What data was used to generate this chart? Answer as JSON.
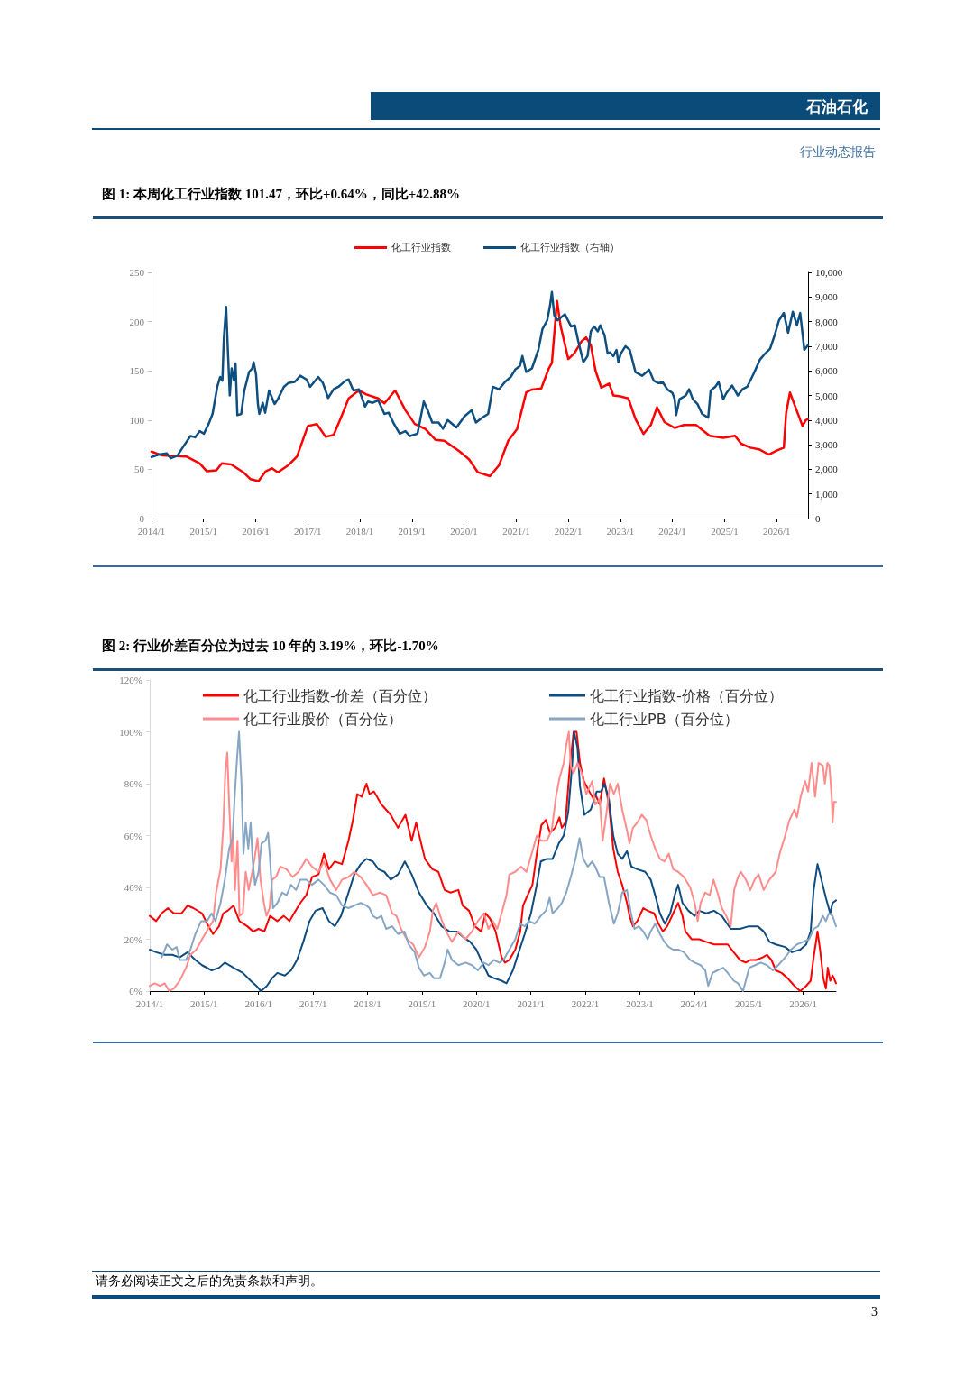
{
  "chart_data": [
    {
      "type": "line",
      "title": "图 1: 本周化工行业指数 101.47，环比+0.64%，同比+42.88%",
      "annotations": [
        "石油石化",
        "行业动态报告"
      ],
      "xlim": [
        "2014-01-01",
        "2026-08-09"
      ],
      "xticks": [
        {
          "value": "2014-01",
          "label": "2014/1"
        },
        {
          "value": "2015-01",
          "label": "2015/1"
        },
        {
          "value": "2016-01",
          "label": "2016/1"
        },
        {
          "value": "2017-01",
          "label": "2017/1"
        },
        {
          "value": "2018-01",
          "label": "2018/1"
        },
        {
          "value": "2019-01",
          "label": "2019/1"
        },
        {
          "value": "2020-01",
          "label": "2020/1"
        },
        {
          "value": "2021-01",
          "label": "2021/1"
        },
        {
          "value": "2022-01",
          "label": "2022/1"
        },
        {
          "value": "2023-01",
          "label": "2023/1"
        },
        {
          "value": "2024-01",
          "label": "2024/1"
        },
        {
          "value": "2025-01",
          "label": "2025/1"
        },
        {
          "value": "2026-01",
          "label": "2026/1"
        }
      ],
      "ylim": [
        0,
        250
      ],
      "yticks": [
        0,
        50,
        100,
        150,
        200,
        250
      ],
      "y2lim": [
        0,
        10000
      ],
      "y2ticks": [
        0,
        {
          "value": 1000,
          "label": "1,000"
        },
        {
          "value": 2000,
          "label": "2,000"
        },
        {
          "value": 3000,
          "label": "3,000"
        },
        {
          "value": 4000,
          "label": "4,000"
        },
        {
          "value": 5000,
          "label": "5,000"
        },
        {
          "value": 6000,
          "label": "6,000"
        },
        {
          "value": 7000,
          "label": "7,000"
        },
        {
          "value": 8000,
          "label": "8,000"
        },
        {
          "value": 9000,
          "label": "9,000"
        },
        {
          "value": 10000,
          "label": "10,000"
        }
      ],
      "grid": false,
      "legend": "top",
      "marker": "none",
      "line_style": "solid",
      "series": [
        {
          "name": "化工行业指数",
          "color": "#ff0000",
          "x": [
            "2014-01-01",
            "2014-03-18",
            "2014-09-02",
            "2014-12-05",
            "2015-01-24",
            "2015-04-01",
            "2015-05-09",
            "2015-07-14",
            "2015-10-07",
            "2015-11-26",
            "2016-01-21",
            "2016-03-12",
            "2016-04-24",
            "2016-06-05",
            "2016-08-16",
            "2016-10-17",
            "2017-01-01",
            "2017-03-05",
            "2017-05-06",
            "2017-07-01",
            "2017-08-20",
            "2017-10-14",
            "2017-12-15",
            "2018-01-08",
            "2018-02-15",
            "2018-05-09",
            "2018-06-22",
            "2018-09-05",
            "2018-11-16",
            "2019-01-21",
            "2019-04-04",
            "2019-06-15",
            "2019-08-16",
            "2019-12-02",
            "2020-02-06",
            "2020-04-07",
            "2020-07-01",
            "2020-09-02",
            "2020-11-06",
            "2021-01-07",
            "2021-03-12",
            "2021-04-21",
            "2021-06-25",
            "2021-08-16",
            "2021-09-08",
            "2021-10-14",
            "2021-11-09",
            "2022-01-01",
            "2022-02-13",
            "2022-04-04",
            "2022-05-06",
            "2022-06-08",
            "2022-07-11",
            "2022-08-20",
            "2022-10-14",
            "2022-11-13",
            "2023-01-04",
            "2023-02-26",
            "2023-04-17",
            "2023-06-12",
            "2023-08-03",
            "2023-09-15",
            "2023-11-06",
            "2024-01-17",
            "2024-03-22",
            "2024-06-15",
            "2024-09-18",
            "2024-12-22",
            "2025-03-15",
            "2025-04-27",
            "2025-07-01",
            "2025-09-05",
            "2025-11-06",
            "2026-01-01",
            "2026-02-20",
            "2026-03-08",
            "2026-04-04",
            "2026-05-13",
            "2026-06-05",
            "2026-07-01",
            "2026-07-24",
            "2026-08-09"
          ],
          "values": [
            68,
            64,
            63,
            56,
            48,
            49,
            56,
            55,
            47,
            40,
            38,
            48,
            51,
            47,
            54,
            63,
            94,
            96,
            83,
            85,
            102,
            122,
            129,
            129,
            126,
            122,
            117,
            130,
            110,
            96,
            91,
            80,
            79,
            68,
            60,
            47,
            43,
            54,
            79,
            91,
            128,
            131,
            132,
            152,
            158,
            221,
            195,
            162,
            168,
            180,
            184,
            176,
            150,
            133,
            137,
            125,
            124,
            122,
            101,
            86,
            95,
            113,
            98,
            92,
            95,
            95,
            84,
            82,
            84,
            76,
            72,
            70,
            65,
            69,
            72,
            107,
            128,
            113,
            104,
            94,
            100,
            101
          ]
        },
        {
          "name": "化工行业指数（右轴）",
          "color": "#0f4f80",
          "axis": "y2",
          "x": [
            "2014-01-01",
            "2014-02-23",
            "2014-04-17",
            "2014-05-16",
            "2014-07-01",
            "2014-08-09",
            "2014-10-01",
            "2014-11-03",
            "2014-12-05",
            "2015-01-04",
            "2015-02-06",
            "2015-03-05",
            "2015-04-07",
            "2015-04-27",
            "2015-05-13",
            "2015-05-23",
            "2015-06-08",
            "2015-06-22",
            "2015-07-04",
            "2015-07-17",
            "2015-08-03",
            "2015-08-13",
            "2015-08-26",
            "2015-09-22",
            "2015-10-14",
            "2015-11-16",
            "2015-12-08",
            "2015-12-18",
            "2016-01-04",
            "2016-01-17",
            "2016-01-27",
            "2016-02-20",
            "2016-03-08",
            "2016-04-04",
            "2016-05-13",
            "2016-06-05",
            "2016-07-17",
            "2016-08-16",
            "2016-10-01",
            "2016-11-09",
            "2016-12-22",
            "2017-01-17",
            "2017-03-15",
            "2017-04-17",
            "2017-05-23",
            "2017-07-01",
            "2017-08-03",
            "2017-09-22",
            "2017-10-14",
            "2017-11-16",
            "2017-12-25",
            "2018-02-06",
            "2018-02-26",
            "2018-04-01",
            "2018-05-09",
            "2018-06-22",
            "2018-07-21",
            "2018-08-23",
            "2018-10-07",
            "2018-11-16",
            "2018-12-18",
            "2019-02-09",
            "2019-03-25",
            "2019-04-21",
            "2019-05-23",
            "2019-07-07",
            "2019-08-06",
            "2019-09-08",
            "2019-11-09",
            "2020-01-04",
            "2020-02-23",
            "2020-03-25",
            "2020-05-09",
            "2020-06-18",
            "2020-07-21",
            "2020-09-02",
            "2020-10-14",
            "2020-11-23",
            "2020-12-25",
            "2021-01-27",
            "2021-02-13",
            "2021-03-12",
            "2021-04-21",
            "2021-06-05",
            "2021-07-04",
            "2021-08-06",
            "2021-08-26",
            "2021-09-08",
            "2021-09-25",
            "2021-10-17",
            "2021-12-08",
            "2022-01-21",
            "2022-02-16",
            "2022-03-12",
            "2022-04-17",
            "2022-05-16",
            "2022-06-08",
            "2022-07-01",
            "2022-07-27",
            "2022-08-13",
            "2022-09-12",
            "2022-10-04",
            "2022-10-21",
            "2022-11-13",
            "2022-12-05",
            "2022-12-18",
            "2023-01-04",
            "2023-02-06",
            "2023-03-08",
            "2023-04-17",
            "2023-06-02",
            "2023-07-04",
            "2023-07-21",
            "2023-08-23",
            "2023-09-25",
            "2023-10-24",
            "2023-11-26",
            "2024-01-01",
            "2024-01-17",
            "2024-01-27",
            "2024-02-20",
            "2024-04-04",
            "2024-04-27",
            "2024-05-23",
            "2024-06-25",
            "2024-07-27",
            "2024-09-08",
            "2024-09-25",
            "2024-10-27",
            "2024-11-20",
            "2024-12-22",
            "2025-01-14",
            "2025-02-23",
            "2025-04-04",
            "2025-05-06",
            "2025-06-08",
            "2025-07-21",
            "2025-09-05",
            "2025-10-04",
            "2025-11-16",
            "2025-12-18",
            "2026-01-17",
            "2026-02-20",
            "2026-03-22",
            "2026-04-24",
            "2026-05-23",
            "2026-06-15",
            "2026-07-14",
            "2026-08-09"
          ],
          "values": [
            2500,
            2600,
            2650,
            2450,
            2550,
            2900,
            3350,
            3300,
            3550,
            3450,
            3850,
            4250,
            5350,
            5750,
            5600,
            7300,
            8600,
            6600,
            5000,
            6100,
            5600,
            6300,
            4200,
            4250,
            5200,
            5950,
            6100,
            6350,
            5850,
            4650,
            4250,
            4700,
            4300,
            5200,
            4650,
            4850,
            5350,
            5500,
            5550,
            5800,
            5650,
            5350,
            5750,
            5500,
            4900,
            5250,
            5350,
            5600,
            5650,
            5200,
            5250,
            4550,
            4750,
            4700,
            4800,
            4250,
            4300,
            3900,
            3450,
            3550,
            3350,
            3450,
            4750,
            4400,
            3900,
            3900,
            3650,
            4000,
            3700,
            4150,
            4400,
            3900,
            4100,
            4250,
            5350,
            5250,
            5550,
            5750,
            6050,
            6200,
            6600,
            5950,
            6100,
            6850,
            7700,
            8050,
            8650,
            9200,
            8250,
            8050,
            8300,
            7800,
            7850,
            7200,
            6350,
            6600,
            7600,
            7800,
            7600,
            7850,
            7450,
            6700,
            6750,
            6600,
            6850,
            6350,
            6700,
            7000,
            6850,
            5950,
            5800,
            5950,
            6050,
            5600,
            5500,
            5550,
            5250,
            5100,
            4850,
            4200,
            4850,
            5000,
            5250,
            4850,
            4650,
            4250,
            4100,
            5200,
            5350,
            5550,
            4850,
            5100,
            5400,
            5000,
            5250,
            5350,
            5850,
            6450,
            6650,
            6900,
            7450,
            8050,
            8350,
            7550,
            8400,
            7850,
            8350,
            6850,
            7050
          ]
        }
      ]
    },
    {
      "type": "line",
      "title": "图 2: 行业价差百分位为过去 10 年的 3.19%，环比-1.70%",
      "annotations": [
        "请务必阅读正文之后的免责条款和声明。",
        "3"
      ],
      "xlim": [
        "2014-01-01",
        "2026-08-09"
      ],
      "xticks": [
        {
          "value": "2014-01",
          "label": "2014/1"
        },
        {
          "value": "2015-01",
          "label": "2015/1"
        },
        {
          "value": "2016-01",
          "label": "2016/1"
        },
        {
          "value": "2017-01",
          "label": "2017/1"
        },
        {
          "value": "2018-01",
          "label": "2018/1"
        },
        {
          "value": "2019-01",
          "label": "2019/1"
        },
        {
          "value": "2020-01",
          "label": "2020/1"
        },
        {
          "value": "2021-01",
          "label": "2021/1"
        },
        {
          "value": "2022-01",
          "label": "2022/1"
        },
        {
          "value": "2023-01",
          "label": "2023/1"
        },
        {
          "value": "2024-01",
          "label": "2024/1"
        },
        {
          "value": "2025-01",
          "label": "2025/1"
        },
        {
          "value": "2026-01",
          "label": "2026/1"
        }
      ],
      "ylim": [
        0,
        120
      ],
      "yticks": [
        {
          "value": 0,
          "label": "0%"
        },
        {
          "value": 20,
          "label": "20%"
        },
        {
          "value": 40,
          "label": "40%"
        },
        {
          "value": 60,
          "label": "60%"
        },
        {
          "value": 80,
          "label": "80%"
        },
        {
          "value": 100,
          "label": "100%"
        },
        {
          "value": 120,
          "label": "120%"
        }
      ],
      "grid": false,
      "legend": "top",
      "marker": "none",
      "line_style": "solid",
      "series": [
        {
          "name": "化工行业指数-价差（百分位）",
          "color": "#ff0000",
          "x": [
            "2014-01-01",
            "2014-02-13",
            "2014-03-22",
            "2014-05-03",
            "2014-06-12",
            "2014-08-03",
            "2014-09-12",
            "2014-10-21",
            "2014-12-18",
            "2015-01-21",
            "2015-03-02",
            "2015-04-11",
            "2015-05-09",
            "2015-06-08",
            "2015-07-17",
            "2015-08-26",
            "2015-10-17",
            "2015-11-26",
            "2016-01-01",
            "2016-02-09",
            "2016-03-18",
            "2016-05-06",
            "2016-06-18",
            "2016-07-27",
            "2016-08-26",
            "2016-10-07",
            "2016-11-16",
            "2016-12-25",
            "2017-02-06",
            "2017-03-15",
            "2017-04-17",
            "2017-05-26",
            "2017-07-14",
            "2017-08-26",
            "2017-09-25",
            "2017-10-24",
            "2017-11-23",
            "2017-12-25",
            "2018-01-14",
            "2018-02-13",
            "2018-04-04",
            "2018-06-05",
            "2018-07-24",
            "2018-09-12",
            "2018-10-24",
            "2018-11-23",
            "2019-01-21",
            "2019-03-12",
            "2019-04-21",
            "2019-06-02",
            "2019-07-11",
            "2019-09-02",
            "2019-10-01",
            "2019-11-13",
            "2019-12-22",
            "2020-02-03",
            "2020-03-02",
            "2020-04-01",
            "2020-05-09",
            "2020-06-18",
            "2020-07-11",
            "2020-08-09",
            "2020-09-18",
            "2020-10-21",
            "2020-11-09",
            "2020-12-02",
            "2021-01-11",
            "2021-02-09",
            "2021-03-12",
            "2021-04-11",
            "2021-05-09",
            "2021-06-12",
            "2021-07-11",
            "2021-07-27",
            "2021-08-20",
            "2021-09-18",
            "2021-10-14",
            "2021-11-03",
            "2021-11-26",
            "2021-12-22",
            "2022-01-27",
            "2022-02-26",
            "2022-03-08",
            "2022-04-07",
            "2022-05-06",
            "2022-06-08",
            "2022-07-07",
            "2022-08-06",
            "2022-09-05",
            "2022-10-07",
            "2022-10-24",
            "2022-11-16",
            "2022-12-15",
            "2023-01-24",
            "2023-02-23",
            "2023-04-07",
            "2023-05-06",
            "2023-06-05",
            "2023-07-04",
            "2023-08-13",
            "2023-09-15",
            "2023-10-14",
            "2023-11-03",
            "2023-12-15",
            "2024-02-03",
            "2024-03-22",
            "2024-05-13",
            "2024-07-04",
            "2024-08-13",
            "2024-09-22",
            "2024-11-03",
            "2024-12-12",
            "2025-01-11",
            "2025-02-20",
            "2025-04-04",
            "2025-05-03",
            "2025-06-02",
            "2025-07-01",
            "2025-08-09",
            "2025-09-18",
            "2025-11-03",
            "2025-12-12",
            "2026-01-21",
            "2026-02-20",
            "2026-03-12",
            "2026-04-07",
            "2026-04-24",
            "2026-05-16",
            "2026-06-02",
            "2026-06-15",
            "2026-07-01",
            "2026-07-17",
            "2026-07-26",
            "2026-08-09"
          ],
          "values": [
            29,
            27,
            30,
            32,
            30,
            30,
            33,
            32,
            30,
            26,
            22,
            25,
            30,
            31,
            33,
            27,
            25,
            23,
            24,
            23,
            29,
            27,
            29,
            27,
            30,
            34,
            37,
            44,
            45,
            53,
            47,
            50,
            49,
            58,
            66,
            76,
            75,
            80,
            76,
            77,
            72,
            68,
            63,
            68,
            58,
            65,
            51,
            47,
            46,
            39,
            38,
            39,
            33,
            31,
            25,
            23,
            30,
            28,
            23,
            13,
            11,
            12,
            16,
            23,
            33,
            36,
            41,
            53,
            64,
            66,
            61,
            63,
            67,
            63,
            65,
            86,
            100,
            100,
            88,
            81,
            77,
            74,
            76,
            72,
            82,
            72,
            55,
            46,
            41,
            34,
            29,
            25,
            27,
            32,
            31,
            30,
            26,
            23,
            25,
            30,
            34,
            29,
            23,
            20,
            20,
            19,
            18,
            18,
            18,
            15,
            12,
            11,
            12,
            12,
            13,
            14,
            12,
            8,
            7,
            5,
            2,
            0,
            2,
            4,
            13,
            23,
            16,
            5,
            1,
            9,
            4,
            6,
            5,
            3
          ]
        },
        {
          "name": "化工行业指数-价格（百分位）",
          "color": "#0f4c7f",
          "x": [
            "2014-01-01",
            "2014-02-13",
            "2014-04-11",
            "2014-06-02",
            "2014-07-21",
            "2014-09-12",
            "2014-11-03",
            "2014-12-18",
            "2015-02-20",
            "2015-04-11",
            "2015-05-20",
            "2015-07-17",
            "2015-09-18",
            "2015-11-09",
            "2015-12-18",
            "2016-01-17",
            "2016-02-26",
            "2016-04-01",
            "2016-05-06",
            "2016-06-25",
            "2016-08-06",
            "2016-09-15",
            "2016-10-27",
            "2016-12-08",
            "2017-01-17",
            "2017-03-05",
            "2017-04-17",
            "2017-05-26",
            "2017-07-07",
            "2017-08-26",
            "2017-10-04",
            "2017-11-16",
            "2017-12-25",
            "2018-02-06",
            "2018-03-15",
            "2018-04-24",
            "2018-06-05",
            "2018-07-24",
            "2018-09-08",
            "2018-10-24",
            "2018-12-12",
            "2019-02-03",
            "2019-03-22",
            "2019-05-13",
            "2019-07-04",
            "2019-08-23",
            "2019-10-01",
            "2019-11-20",
            "2020-01-01",
            "2020-02-09",
            "2020-03-22",
            "2020-04-27",
            "2020-06-18",
            "2020-07-21",
            "2020-09-02",
            "2020-10-11",
            "2020-11-20",
            "2021-01-01",
            "2021-02-09",
            "2021-03-08",
            "2021-04-17",
            "2021-05-26",
            "2021-07-07",
            "2021-08-09",
            "2021-09-08",
            "2021-10-04",
            "2021-10-17",
            "2021-11-09",
            "2021-11-26",
            "2021-12-25",
            "2022-02-06",
            "2022-03-18",
            "2022-04-17",
            "2022-05-09",
            "2022-06-08",
            "2022-07-07",
            "2022-08-06",
            "2022-09-05",
            "2022-10-07",
            "2022-11-06",
            "2022-12-15",
            "2023-02-06",
            "2023-03-15",
            "2023-04-14",
            "2023-05-16",
            "2023-06-18",
            "2023-07-24",
            "2023-08-23",
            "2023-09-15",
            "2023-10-14",
            "2023-11-23",
            "2024-01-04",
            "2024-02-03",
            "2024-03-22",
            "2024-05-13",
            "2024-07-04",
            "2024-09-02",
            "2024-11-03",
            "2025-01-01",
            "2025-03-02",
            "2025-04-11",
            "2025-05-20",
            "2025-07-01",
            "2025-09-02",
            "2025-10-17",
            "2025-12-12",
            "2026-01-21",
            "2026-02-20",
            "2026-03-12",
            "2026-04-07",
            "2026-05-03",
            "2026-06-02",
            "2026-07-01",
            "2026-07-17",
            "2026-08-09"
          ],
          "values": [
            16,
            15,
            14,
            14,
            13,
            15,
            12,
            10,
            8,
            9,
            11,
            9,
            7,
            4,
            2,
            0,
            2,
            5,
            7,
            6,
            8,
            12,
            19,
            27,
            31,
            32,
            27,
            25,
            29,
            38,
            45,
            49,
            51,
            50,
            47,
            46,
            43,
            45,
            50,
            45,
            38,
            33,
            30,
            25,
            23,
            23,
            21,
            19,
            16,
            11,
            6,
            5,
            4,
            3,
            8,
            15,
            22,
            30,
            41,
            50,
            51,
            51,
            57,
            60,
            69,
            87,
            100,
            94,
            79,
            68,
            70,
            77,
            77,
            80,
            74,
            60,
            53,
            51,
            54,
            48,
            47,
            46,
            43,
            37,
            30,
            26,
            30,
            37,
            41,
            34,
            31,
            29,
            31,
            30,
            31,
            29,
            24,
            24,
            25,
            25,
            23,
            19,
            18,
            17,
            15,
            16,
            18,
            23,
            39,
            49,
            43,
            36,
            30,
            34,
            35
          ]
        },
        {
          "name": "化工行业股价（百分位）",
          "color": "#ff8c8c",
          "x": [
            "2014-01-01",
            "2014-02-03",
            "2014-03-12",
            "2014-04-11",
            "2014-05-13",
            "2014-06-12",
            "2014-07-21",
            "2014-09-02",
            "2014-10-01",
            "2014-11-09",
            "2014-12-18",
            "2015-01-27",
            "2015-03-02",
            "2015-03-22",
            "2015-04-21",
            "2015-05-09",
            "2015-05-23",
            "2015-06-05",
            "2015-06-18",
            "2015-07-04",
            "2015-07-14",
            "2015-07-27",
            "2015-08-13",
            "2015-08-26",
            "2015-09-18",
            "2015-10-07",
            "2015-10-27",
            "2015-11-20",
            "2015-12-05",
            "2015-12-25",
            "2016-01-14",
            "2016-02-06",
            "2016-02-23",
            "2016-03-15",
            "2016-04-01",
            "2016-04-27",
            "2016-05-26",
            "2016-07-07",
            "2016-08-16",
            "2016-09-25",
            "2016-11-16",
            "2016-12-25",
            "2017-02-06",
            "2017-03-15",
            "2017-04-24",
            "2017-06-05",
            "2017-07-14",
            "2017-08-26",
            "2017-10-04",
            "2017-11-16",
            "2017-12-25",
            "2018-02-06",
            "2018-03-25",
            "2018-05-06",
            "2018-06-15",
            "2018-07-14",
            "2018-08-13",
            "2018-09-22",
            "2018-11-03",
            "2018-12-12",
            "2019-01-21",
            "2019-02-23",
            "2019-03-15",
            "2019-04-07",
            "2019-05-03",
            "2019-06-12",
            "2019-07-21",
            "2019-09-02",
            "2019-10-21",
            "2019-12-02",
            "2020-01-11",
            "2020-02-20",
            "2020-03-22",
            "2020-04-21",
            "2020-05-20",
            "2020-06-18",
            "2020-07-21",
            "2020-08-09",
            "2020-09-18",
            "2020-10-27",
            "2020-12-02",
            "2021-01-11",
            "2021-02-09",
            "2021-03-12",
            "2021-04-17",
            "2021-05-20",
            "2021-06-18",
            "2021-07-11",
            "2021-08-09",
            "2021-08-26",
            "2021-09-12",
            "2021-09-25",
            "2021-10-14",
            "2021-11-09",
            "2021-12-08",
            "2022-01-07",
            "2022-02-16",
            "2022-03-08",
            "2022-04-07",
            "2022-04-27",
            "2022-05-23",
            "2022-06-15",
            "2022-07-11",
            "2022-08-06",
            "2022-09-05",
            "2022-10-07",
            "2022-10-24",
            "2022-11-16",
            "2022-12-15",
            "2023-01-14",
            "2023-02-13",
            "2023-03-15",
            "2023-04-14",
            "2023-05-16",
            "2023-06-15",
            "2023-07-14",
            "2023-08-13",
            "2023-09-15",
            "2023-10-24",
            "2023-12-05",
            "2024-01-04",
            "2024-01-24",
            "2024-02-13",
            "2024-03-15",
            "2024-04-14",
            "2024-05-09",
            "2024-06-05",
            "2024-07-04",
            "2024-08-03",
            "2024-09-02",
            "2024-09-12",
            "2024-09-25",
            "2024-10-21",
            "2024-11-09",
            "2024-12-12",
            "2025-01-11",
            "2025-02-09",
            "2025-03-08",
            "2025-04-11",
            "2025-05-20",
            "2025-07-01",
            "2025-07-27",
            "2025-09-02",
            "2025-10-01",
            "2025-11-03",
            "2025-11-20",
            "2025-12-15",
            "2026-01-14",
            "2026-02-03",
            "2026-02-26",
            "2026-03-22",
            "2026-04-14",
            "2026-05-13",
            "2026-05-26",
            "2026-06-12",
            "2026-06-25",
            "2026-07-11",
            "2026-07-17",
            "2026-07-26",
            "2026-08-09"
          ],
          "values": [
            2,
            3,
            2,
            3,
            0,
            1,
            4,
            9,
            14,
            16,
            20,
            24,
            27,
            38,
            47,
            63,
            84,
            92,
            72,
            50,
            62,
            39,
            58,
            29,
            30,
            46,
            39,
            46,
            51,
            59,
            43,
            34,
            29,
            32,
            43,
            44,
            48,
            47,
            44,
            46,
            51,
            48,
            46,
            50,
            43,
            39,
            43,
            44,
            46,
            44,
            41,
            37,
            38,
            37,
            30,
            29,
            24,
            20,
            18,
            13,
            17,
            23,
            31,
            34,
            29,
            23,
            19,
            23,
            20,
            23,
            27,
            30,
            24,
            27,
            24,
            30,
            37,
            45,
            46,
            48,
            46,
            54,
            60,
            58,
            58,
            62,
            75,
            82,
            88,
            95,
            100,
            87,
            84,
            88,
            84,
            76,
            81,
            72,
            74,
            58,
            69,
            80,
            76,
            80,
            70,
            62,
            57,
            63,
            65,
            68,
            66,
            60,
            55,
            51,
            50,
            53,
            47,
            46,
            44,
            40,
            34,
            27,
            34,
            38,
            37,
            43,
            38,
            32,
            29,
            25,
            31,
            39,
            44,
            46,
            43,
            39,
            43,
            45,
            39,
            43,
            46,
            53,
            60,
            66,
            70,
            67,
            75,
            81,
            77,
            88,
            75,
            88,
            87,
            80,
            88,
            87,
            75,
            65,
            73,
            73
          ]
        },
        {
          "name": "化工行业PB（百分位）",
          "color": "#86a6c4",
          "x": [
            "2014-03-22",
            "2014-04-27",
            "2014-06-02",
            "2014-07-01",
            "2014-07-21",
            "2014-09-02",
            "2014-10-01",
            "2014-11-03",
            "2014-12-12",
            "2015-01-21",
            "2015-02-20",
            "2015-03-18",
            "2015-04-21",
            "2015-05-20",
            "2015-06-18",
            "2015-07-11",
            "2015-07-24",
            "2015-08-09",
            "2015-08-23",
            "2015-09-08",
            "2015-09-22",
            "2015-10-07",
            "2015-10-24",
            "2015-11-09",
            "2015-11-23",
            "2015-12-08",
            "2016-01-01",
            "2016-01-21",
            "2016-02-16",
            "2016-03-05",
            "2016-03-18",
            "2016-04-07",
            "2016-05-06",
            "2016-06-08",
            "2016-07-07",
            "2016-08-06",
            "2016-09-08",
            "2016-10-07",
            "2016-11-16",
            "2016-12-25",
            "2017-02-06",
            "2017-03-15",
            "2017-04-24",
            "2017-06-05",
            "2017-07-14",
            "2017-08-26",
            "2017-10-04",
            "2017-11-16",
            "2017-12-25",
            "2018-01-14",
            "2018-02-06",
            "2018-03-05",
            "2018-04-04",
            "2018-05-06",
            "2018-06-15",
            "2018-07-24",
            "2018-09-05",
            "2018-10-04",
            "2018-11-13",
            "2018-12-12",
            "2019-01-14",
            "2019-02-23",
            "2019-03-22",
            "2019-05-03",
            "2019-06-02",
            "2019-06-22",
            "2019-07-21",
            "2019-09-02",
            "2019-10-21",
            "2019-12-02",
            "2020-01-11",
            "2020-02-20",
            "2020-03-22",
            "2020-04-27",
            "2020-06-02",
            "2020-07-01",
            "2020-08-09",
            "2020-09-18",
            "2020-10-21",
            "2020-11-20",
            "2020-12-18",
            "2021-01-27",
            "2021-03-08",
            "2021-04-11",
            "2021-05-06",
            "2021-05-26",
            "2021-07-01",
            "2021-07-27",
            "2021-08-26",
            "2021-09-25",
            "2021-10-27",
            "2021-11-23",
            "2021-12-18",
            "2022-01-17",
            "2022-02-16",
            "2022-03-08",
            "2022-04-07",
            "2022-05-06",
            "2022-06-08",
            "2022-07-11",
            "2022-08-06",
            "2022-09-05",
            "2022-10-07",
            "2022-11-03",
            "2022-11-26",
            "2022-12-25",
            "2023-01-24",
            "2023-02-23",
            "2023-03-15",
            "2023-04-14",
            "2023-05-16",
            "2023-06-15",
            "2023-07-14",
            "2023-08-13",
            "2023-09-15",
            "2023-10-24",
            "2023-12-05",
            "2024-01-04",
            "2024-02-13",
            "2024-03-15",
            "2024-04-04",
            "2024-05-03",
            "2024-06-05",
            "2024-07-14",
            "2024-08-13",
            "2024-09-22",
            "2024-10-21",
            "2024-11-23",
            "2024-12-12",
            "2025-01-04",
            "2025-02-13",
            "2025-03-22",
            "2025-05-03",
            "2025-06-12",
            "2025-07-17",
            "2025-09-02",
            "2025-10-11",
            "2025-11-20",
            "2026-01-01",
            "2026-02-09",
            "2026-03-12",
            "2026-04-11",
            "2026-05-13",
            "2026-06-02",
            "2026-06-22",
            "2026-07-17",
            "2026-08-09"
          ],
          "values": [
            13,
            18,
            16,
            17,
            12,
            12,
            16,
            22,
            27,
            27,
            30,
            27,
            34,
            43,
            55,
            59,
            74,
            89,
            100,
            81,
            53,
            65,
            55,
            65,
            50,
            41,
            46,
            57,
            58,
            61,
            51,
            32,
            34,
            38,
            37,
            41,
            39,
            43,
            43,
            41,
            43,
            41,
            38,
            37,
            33,
            32,
            33,
            34,
            33,
            32,
            29,
            28,
            29,
            24,
            25,
            22,
            23,
            18,
            15,
            9,
            6,
            7,
            5,
            5,
            11,
            16,
            12,
            10,
            11,
            10,
            8,
            11,
            10,
            12,
            11,
            12,
            16,
            20,
            26,
            25,
            27,
            26,
            29,
            31,
            36,
            30,
            32,
            34,
            38,
            44,
            51,
            59,
            51,
            48,
            50,
            48,
            44,
            44,
            34,
            26,
            30,
            38,
            39,
            30,
            24,
            25,
            23,
            20,
            23,
            26,
            22,
            19,
            17,
            16,
            16,
            15,
            12,
            11,
            10,
            8,
            2,
            7,
            8,
            9,
            7,
            4,
            3,
            0,
            4,
            9,
            10,
            11,
            10,
            8,
            10,
            13,
            16,
            18,
            19,
            20,
            24,
            25,
            29,
            27,
            30,
            29,
            25
          ]
        }
      ]
    }
  ]
}
